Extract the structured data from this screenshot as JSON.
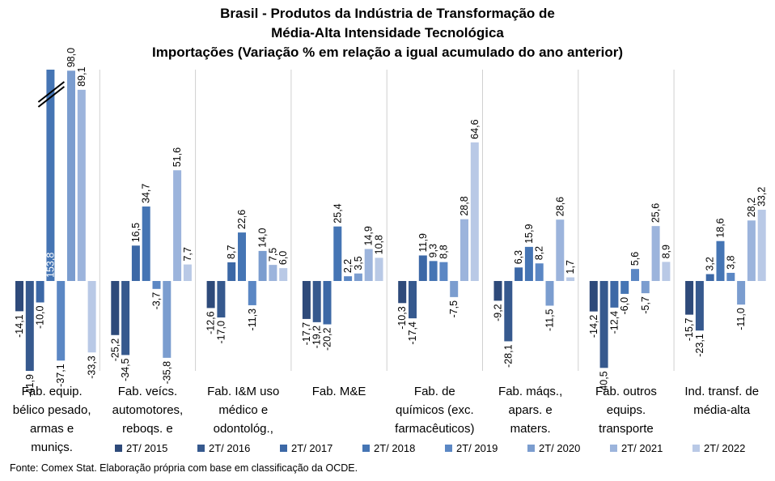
{
  "title_lines": [
    "Brasil - Produtos da Indústria de Transformação de",
    "Média-Alta Intensidade Tecnológica",
    "Importações (Variação % em relação a igual acumulado do ano anterior)"
  ],
  "source": "Fonte: Comex Stat. Elaboração própria com base em classificação da OCDE.",
  "colors": [
    "#2e4a7a",
    "#36598e",
    "#3c68a6",
    "#4575b4",
    "#5b87c4",
    "#7b9dcf",
    "#9cb4dc",
    "#b9c9e6"
  ],
  "chart_data": {
    "type": "bar",
    "categories": [
      "Fab. equip. bélico pesado, armas e munições",
      "Fab. veícs. automotores, reboqs. e",
      "Fab. I&M uso médico e odontológ.,",
      "Fab. M&E",
      "Fab. de químicos (exc. farmacêuticos)",
      "Fab. máqs., apars. e maters.",
      "Fab. outros equips. transporte",
      "Ind. transf. de média-alta"
    ],
    "category_lines": [
      [
        "Fab. equip.",
        "bélico pesado,",
        "armas e",
        "muniçs."
      ],
      [
        "Fab. veícs.",
        "automotores,",
        "reboqs. e"
      ],
      [
        "Fab. I&M uso",
        "médico e",
        "odontológ.,"
      ],
      [
        "Fab. M&E"
      ],
      [
        "Fab. de",
        "químicos (exc.",
        "farmacêuticos)"
      ],
      [
        "Fab. máqs.,",
        "apars. e",
        "maters."
      ],
      [
        "Fab. outros",
        "equips.",
        "transporte"
      ],
      [
        "Ind. transf. de",
        "média-alta"
      ]
    ],
    "series": [
      {
        "name": "2T/ 2015",
        "values": [
          -14.1,
          -25.2,
          -12.6,
          -17.7,
          -10.3,
          -9.2,
          -14.2,
          -15.7
        ]
      },
      {
        "name": "2T/ 2016",
        "values": [
          -41.9,
          -34.5,
          -17.0,
          -19.2,
          -17.4,
          -28.1,
          -40.5,
          -23.1
        ]
      },
      {
        "name": "2T/ 2017",
        "values": [
          -10.0,
          16.5,
          8.7,
          -20.2,
          11.9,
          6.3,
          -12.4,
          3.2
        ]
      },
      {
        "name": "2T/ 2018",
        "values": [
          153.8,
          34.7,
          22.6,
          25.4,
          9.3,
          15.9,
          -6.0,
          18.6
        ]
      },
      {
        "name": "2T/ 2019",
        "values": [
          -37.1,
          -3.7,
          -11.3,
          2.2,
          8.8,
          8.2,
          5.6,
          3.8
        ]
      },
      {
        "name": "2T/ 2020",
        "values": [
          98.0,
          -35.8,
          14.0,
          3.5,
          -7.5,
          -11.5,
          -5.7,
          -11.0
        ]
      },
      {
        "name": "2T/ 2021",
        "values": [
          89.1,
          51.6,
          7.5,
          14.9,
          28.8,
          28.6,
          25.6,
          28.2
        ]
      },
      {
        "name": "2T/ 2022",
        "values": [
          -33.3,
          7.7,
          6.0,
          10.8,
          64.6,
          1.7,
          8.9,
          33.2
        ]
      }
    ],
    "value_labels": [
      [
        "-14,1",
        "-41,9",
        "-10,0",
        "153,8",
        "-37,1",
        "98,0",
        "89,1",
        "-33,3"
      ],
      [
        "-25,2",
        "-34,5",
        "16,5",
        "34,7",
        "-3,7",
        "-35,8",
        "51,6",
        "7,7"
      ],
      [
        "-12,6",
        "-17,0",
        "8,7",
        "22,6",
        "-11,3",
        "14,0",
        "7,5",
        "6,0"
      ],
      [
        "-17,7",
        "-19,2",
        "-20,2",
        "25,4",
        "2,2",
        "3,5",
        "14,9",
        "10,8"
      ],
      [
        "-10,3",
        "-17,4",
        "11,9",
        "9,3",
        "8,8",
        "-7,5",
        "28,8",
        "64,6"
      ],
      [
        "-9,2",
        "-28,1",
        "6,3",
        "15,9",
        "8,2",
        "-11,5",
        "28,6",
        "1,7"
      ],
      [
        "-14,2",
        "-40,5",
        "-12,4",
        "-6,0",
        "5,6",
        "-5,7",
        "25,6",
        "8,9"
      ],
      [
        "-15,7",
        "-23,1",
        "3,2",
        "18,6",
        "3,8",
        "-11,0",
        "28,2",
        "33,2"
      ]
    ],
    "axis_break": {
      "category_index": 0,
      "series_index": 3
    },
    "ylim": [
      -45,
      108
    ],
    "legend_position": "bottom",
    "grid": false
  }
}
